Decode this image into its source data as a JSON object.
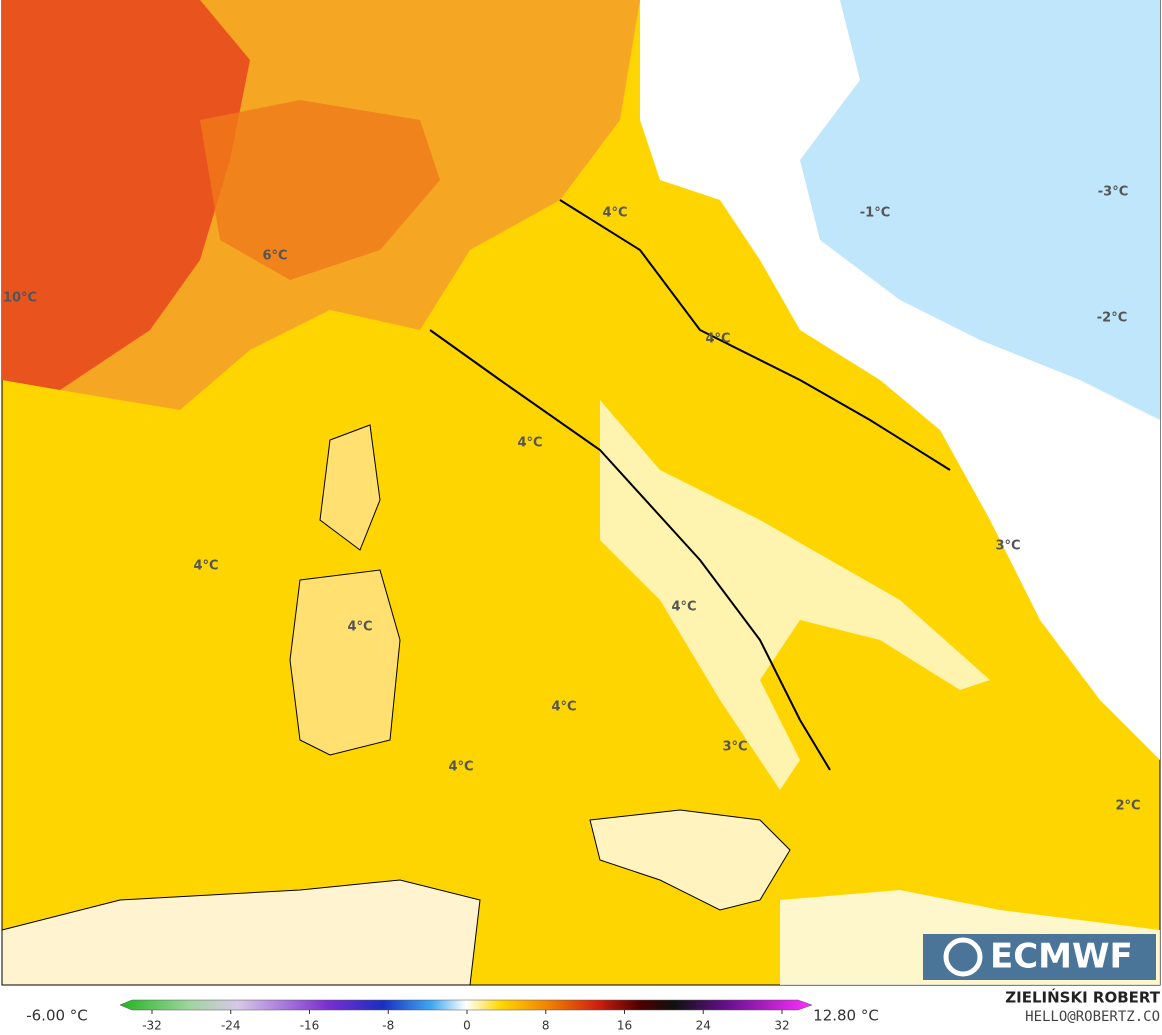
{
  "map": {
    "labels": [
      "10°C",
      "6°C",
      "4°C",
      "-1°C",
      "-3°C",
      "4°C",
      "-2°C",
      "4°C",
      "4°C",
      "3°C",
      "4°C",
      "4°C",
      "4°C",
      "3°C",
      "4°C",
      "2°C"
    ]
  },
  "colorbar": {
    "min_label": "-6.00 °C",
    "max_label": "12.80 °C",
    "ticks": [
      -32,
      -24,
      -16,
      -8,
      0,
      8,
      16,
      24,
      32
    ]
  },
  "credit": {
    "author": "ZIELIŃSKI ROBERT",
    "contact": "HELLO@ROBERTZ.CO"
  },
  "logo": "ECMWF"
}
